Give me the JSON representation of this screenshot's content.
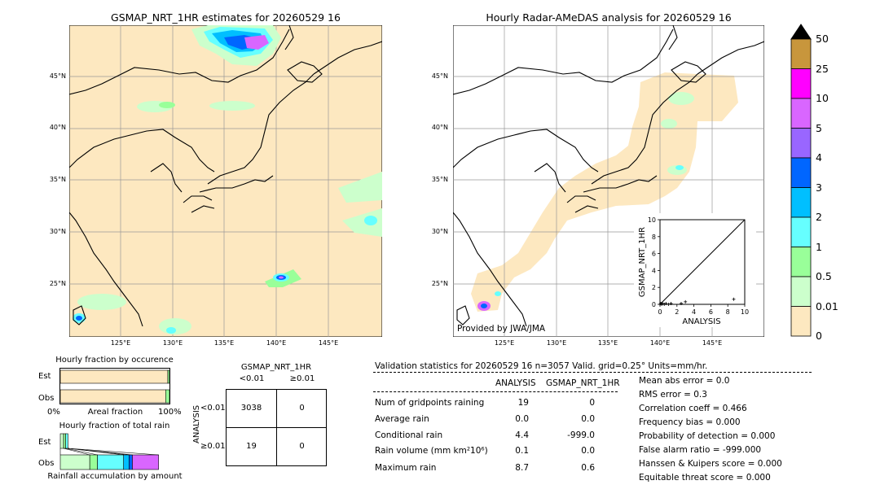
{
  "map_left": {
    "title": "GSMAP_NRT_1HR estimates for 20260529 16",
    "lat_ticks": [
      "45°N",
      "40°N",
      "35°N",
      "30°N",
      "25°N"
    ],
    "lon_ticks": [
      "125°E",
      "130°E",
      "135°E",
      "140°E",
      "145°E"
    ]
  },
  "map_right": {
    "title": "Hourly Radar-AMeDAS analysis for 20260529 16",
    "lat_ticks": [
      "45°N",
      "40°N",
      "35°N",
      "30°N",
      "25°N"
    ],
    "lon_ticks": [
      "125°E",
      "130°E",
      "135°E",
      "140°E",
      "145°E"
    ],
    "provider": "Provided by JWA/JMA"
  },
  "colorbar": {
    "labels": [
      "50",
      "25",
      "10",
      "5",
      "4",
      "3",
      "2",
      "1",
      "0.5",
      "0.01",
      "0"
    ],
    "colors": [
      "#c8963c",
      "#ff00ff",
      "#d966ff",
      "#9966ff",
      "#0066ff",
      "#00bfff",
      "#66ffff",
      "#99ff99",
      "#ccffcc",
      "#fde8c0"
    ],
    "over_color": "#000000"
  },
  "chart_data": [
    {
      "type": "scatter",
      "title": "",
      "xlabel": "ANALYSIS",
      "ylabel": "GSMAP_NRT_1HR",
      "xlim": [
        0,
        10
      ],
      "ylim": [
        0,
        10
      ],
      "x_ticks": [
        "0",
        "2",
        "4",
        "6",
        "8",
        "10"
      ],
      "y_ticks": [
        "0",
        "2",
        "4",
        "6",
        "8",
        "10"
      ],
      "points": [
        {
          "x": 0.0,
          "y": 0.0
        },
        {
          "x": 0.1,
          "y": 0.1
        },
        {
          "x": 0.2,
          "y": 0.0
        },
        {
          "x": 0.3,
          "y": 0.1
        },
        {
          "x": 0.5,
          "y": 0.0
        },
        {
          "x": 0.7,
          "y": 0.1
        },
        {
          "x": 1.0,
          "y": 0.0
        },
        {
          "x": 1.3,
          "y": 0.1
        },
        {
          "x": 2.5,
          "y": 0.1
        },
        {
          "x": 3.0,
          "y": 0.3
        },
        {
          "x": 8.7,
          "y": 0.6
        }
      ]
    },
    {
      "type": "bar",
      "title": "Hourly fraction by occurence",
      "xlabel": "Areal fraction",
      "categories": [
        "Est",
        "Obs"
      ],
      "x_ticks": [
        "0%",
        "100%"
      ],
      "series": [
        {
          "values": [
            0.985,
            0.965
          ]
        },
        {
          "values": [
            0.015,
            0.035
          ]
        }
      ]
    },
    {
      "type": "bar",
      "title": "Hourly fraction of total rain",
      "xlabel": "Rainfall accumulation by amount",
      "categories": [
        "Est",
        "Obs"
      ],
      "series": [
        {
          "values": [
            0.03,
            0.27
          ]
        },
        {
          "values": [
            0.02,
            0.07
          ]
        },
        {
          "values": [
            0.02,
            0.24
          ]
        },
        {
          "values": [
            0.0,
            0.05
          ]
        },
        {
          "values": [
            0.0,
            0.03
          ]
        },
        {
          "values": [
            0.0,
            0.24
          ]
        }
      ]
    }
  ],
  "contingency": {
    "title": "GSMAP_NRT_1HR",
    "col_headers": [
      "<0.01",
      "≥0.01"
    ],
    "row_label": "ANALYSIS",
    "row_headers": [
      "<0.01",
      "≥0.01"
    ],
    "cells": [
      [
        "3038",
        "0"
      ],
      [
        "19",
        "0"
      ]
    ]
  },
  "validation": {
    "header": "Validation statistics for 20260529 16  n=3057 Valid. grid=0.25° Units=mm/hr.",
    "col1": "ANALYSIS",
    "col2": "GSMAP_NRT_1HR",
    "rows": [
      {
        "label": "Num of gridpoints raining",
        "a": "19",
        "g": "0"
      },
      {
        "label": "Average rain",
        "a": "0.0",
        "g": "0.0"
      },
      {
        "label": "Conditional rain",
        "a": "4.4",
        "g": "-999.0"
      },
      {
        "label": "Rain volume (mm km²10⁶)",
        "a": "0.1",
        "g": "0.0"
      },
      {
        "label": "Maximum rain",
        "a": "8.7",
        "g": "0.6"
      }
    ],
    "scores": [
      "Mean abs error =    0.0",
      "RMS error =    0.3",
      "Correlation coeff =  0.466",
      "Frequency bias =  0.000",
      "Probability of detection =  0.000",
      "False alarm ratio = -999.000",
      "Hanssen & Kuipers score =  0.000",
      "Equitable threat score =  0.000"
    ]
  }
}
